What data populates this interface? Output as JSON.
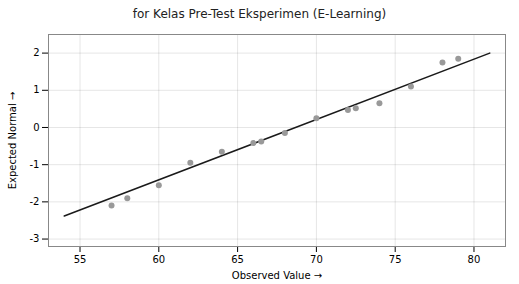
{
  "chart_data": {
    "type": "scatter",
    "title": "for Kelas Pre-Test Eksperimen (E-Learning)",
    "xlabel": "Observed Value",
    "ylabel": "Expected Normal",
    "xlim": [
      53,
      82
    ],
    "ylim": [
      -3.2,
      2.5
    ],
    "xticks": [
      55,
      60,
      65,
      70,
      75,
      80
    ],
    "yticks": [
      -3,
      -2,
      -1,
      0,
      1,
      2
    ],
    "grid": true,
    "series": [
      {
        "type": "scatter",
        "color": "#999999",
        "x": [
          57.0,
          58.0,
          60.0,
          62.0,
          64.0,
          66.0,
          66.5,
          68.0,
          70.0,
          72.0,
          72.5,
          74.0,
          76.0,
          78.0,
          79.0
        ],
        "values": [
          -2.1,
          -1.9,
          -1.55,
          -0.95,
          -0.65,
          -0.42,
          -0.38,
          -0.15,
          0.25,
          0.47,
          0.52,
          0.65,
          1.1,
          1.75,
          1.85
        ]
      },
      {
        "type": "line",
        "color": "#1a1a1a",
        "x": [
          54,
          81
        ],
        "values": [
          -2.38,
          2.0
        ]
      }
    ]
  }
}
